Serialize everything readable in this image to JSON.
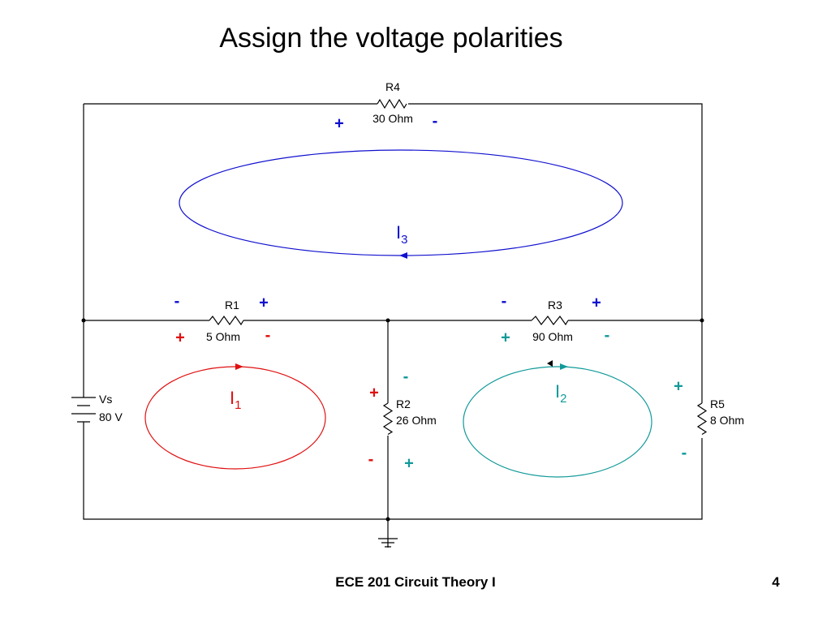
{
  "title": "Assign the voltage polarities",
  "components": [
    {
      "name": "R4",
      "value": "30 Ohm"
    },
    {
      "name": "R1",
      "value": "5 Ohm"
    },
    {
      "name": "R3",
      "value": "90 Ohm"
    },
    {
      "name": "R2",
      "value": "26 Ohm"
    },
    {
      "name": "R5",
      "value": "8 Ohm"
    },
    {
      "name": "Vs",
      "value": "80 V"
    }
  ],
  "loops": [
    {
      "label": "I",
      "subscript": "3"
    },
    {
      "label": "I",
      "subscript": "1"
    },
    {
      "label": "I",
      "subscript": "2"
    }
  ],
  "polarities": [
    "+",
    "-",
    "-",
    "+",
    "+",
    "-",
    "-",
    "+",
    "+",
    "-",
    "-",
    "+",
    "-",
    "+",
    "+",
    "-"
  ],
  "footer": {
    "course": "ECE 201 Circuit Theory I",
    "page": "4"
  }
}
